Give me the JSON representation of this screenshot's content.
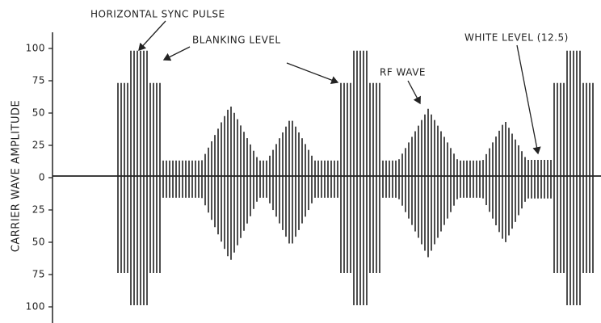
{
  "annotations": {
    "sync": "HORIZONTAL SYNC PULSE",
    "blanking": "BLANKING LEVEL",
    "rf": "RF WAVE",
    "white": "WHITE LEVEL (12.5)"
  },
  "axis": {
    "label": "CARRIER WAVE AMPLITUDE",
    "ticks": [
      "100",
      "75",
      "50",
      "25",
      "0",
      "25",
      "50",
      "75",
      "100"
    ]
  }
}
